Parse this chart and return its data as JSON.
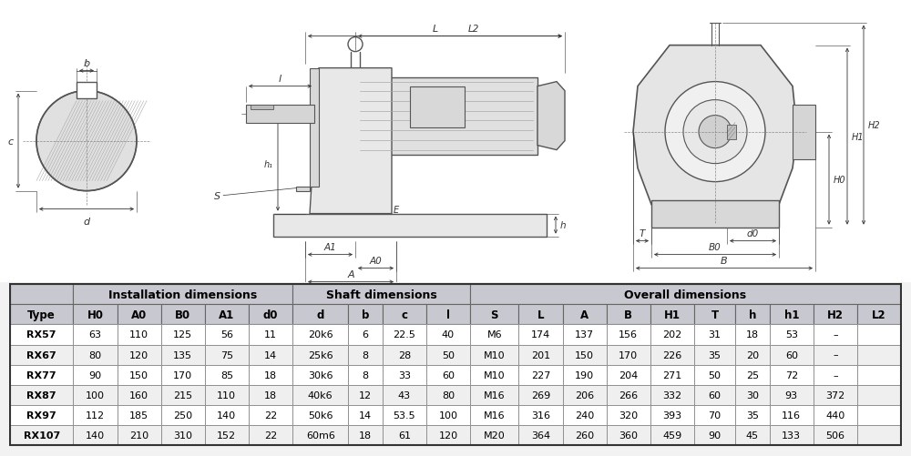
{
  "table_headers_row2": [
    "Type",
    "H0",
    "A0",
    "B0",
    "A1",
    "d0",
    "d",
    "b",
    "c",
    "l",
    "S",
    "L",
    "A",
    "B",
    "H1",
    "T",
    "h",
    "h1",
    "H2",
    "L2"
  ],
  "table_data": [
    [
      "RX57",
      "63",
      "110",
      "125",
      "56",
      "11",
      "20k6",
      "6",
      "22.5",
      "40",
      "M6",
      "174",
      "137",
      "156",
      "202",
      "31",
      "18",
      "53",
      "–",
      ""
    ],
    [
      "RX67",
      "80",
      "120",
      "135",
      "75",
      "14",
      "25k6",
      "8",
      "28",
      "50",
      "M10",
      "201",
      "150",
      "170",
      "226",
      "35",
      "20",
      "60",
      "–",
      ""
    ],
    [
      "RX77",
      "90",
      "150",
      "170",
      "85",
      "18",
      "30k6",
      "8",
      "33",
      "60",
      "M10",
      "227",
      "190",
      "204",
      "271",
      "50",
      "25",
      "72",
      "–",
      ""
    ],
    [
      "RX87",
      "100",
      "160",
      "215",
      "110",
      "18",
      "40k6",
      "12",
      "43",
      "80",
      "M16",
      "269",
      "206",
      "266",
      "332",
      "60",
      "30",
      "93",
      "372",
      ""
    ],
    [
      "RX97",
      "112",
      "185",
      "250",
      "140",
      "22",
      "50k6",
      "14",
      "53.5",
      "100",
      "M16",
      "316",
      "240",
      "320",
      "393",
      "70",
      "35",
      "116",
      "440",
      ""
    ],
    [
      "RX107",
      "140",
      "210",
      "310",
      "152",
      "22",
      "60m6",
      "18",
      "61",
      "120",
      "M20",
      "364",
      "260",
      "360",
      "459",
      "90",
      "45",
      "133",
      "506",
      ""
    ]
  ],
  "header_bg": "#c8c8d0",
  "row_bg_even": "#ffffff",
  "row_bg_odd": "#efefef",
  "bg_color": "#f2f2f2",
  "line_color": "#555555",
  "dim_color": "#333333"
}
